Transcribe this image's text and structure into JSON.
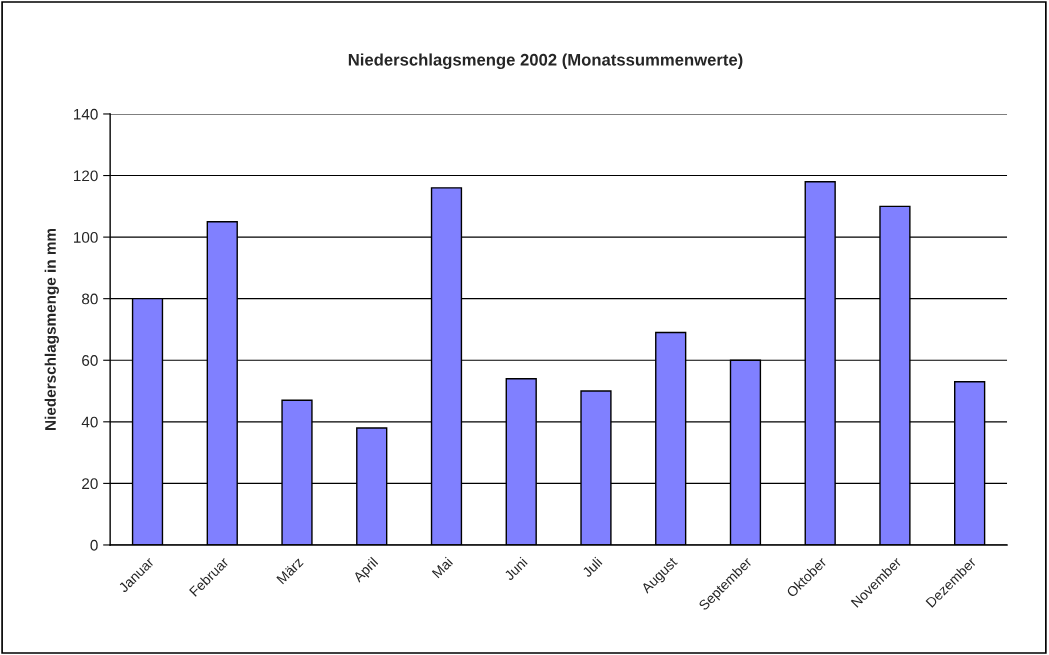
{
  "chart_data": {
    "type": "bar",
    "title": "Niederschlagsmenge 2002 (Monatssummenwerte)",
    "ylabel": "Niederschlagsmenge in mm",
    "categories": [
      "Januar",
      "Februar",
      "März",
      "April",
      "Mai",
      "Juni",
      "Juli",
      "August",
      "September",
      "Oktober",
      "November",
      "Dezember"
    ],
    "values": [
      80,
      105,
      47,
      38,
      116,
      54,
      50,
      69,
      60,
      118,
      110,
      53
    ],
    "color": "#8080ff",
    "ylim": [
      0,
      140
    ],
    "yticks": [
      0,
      20,
      40,
      60,
      80,
      100,
      120,
      140
    ],
    "grid": "y"
  }
}
